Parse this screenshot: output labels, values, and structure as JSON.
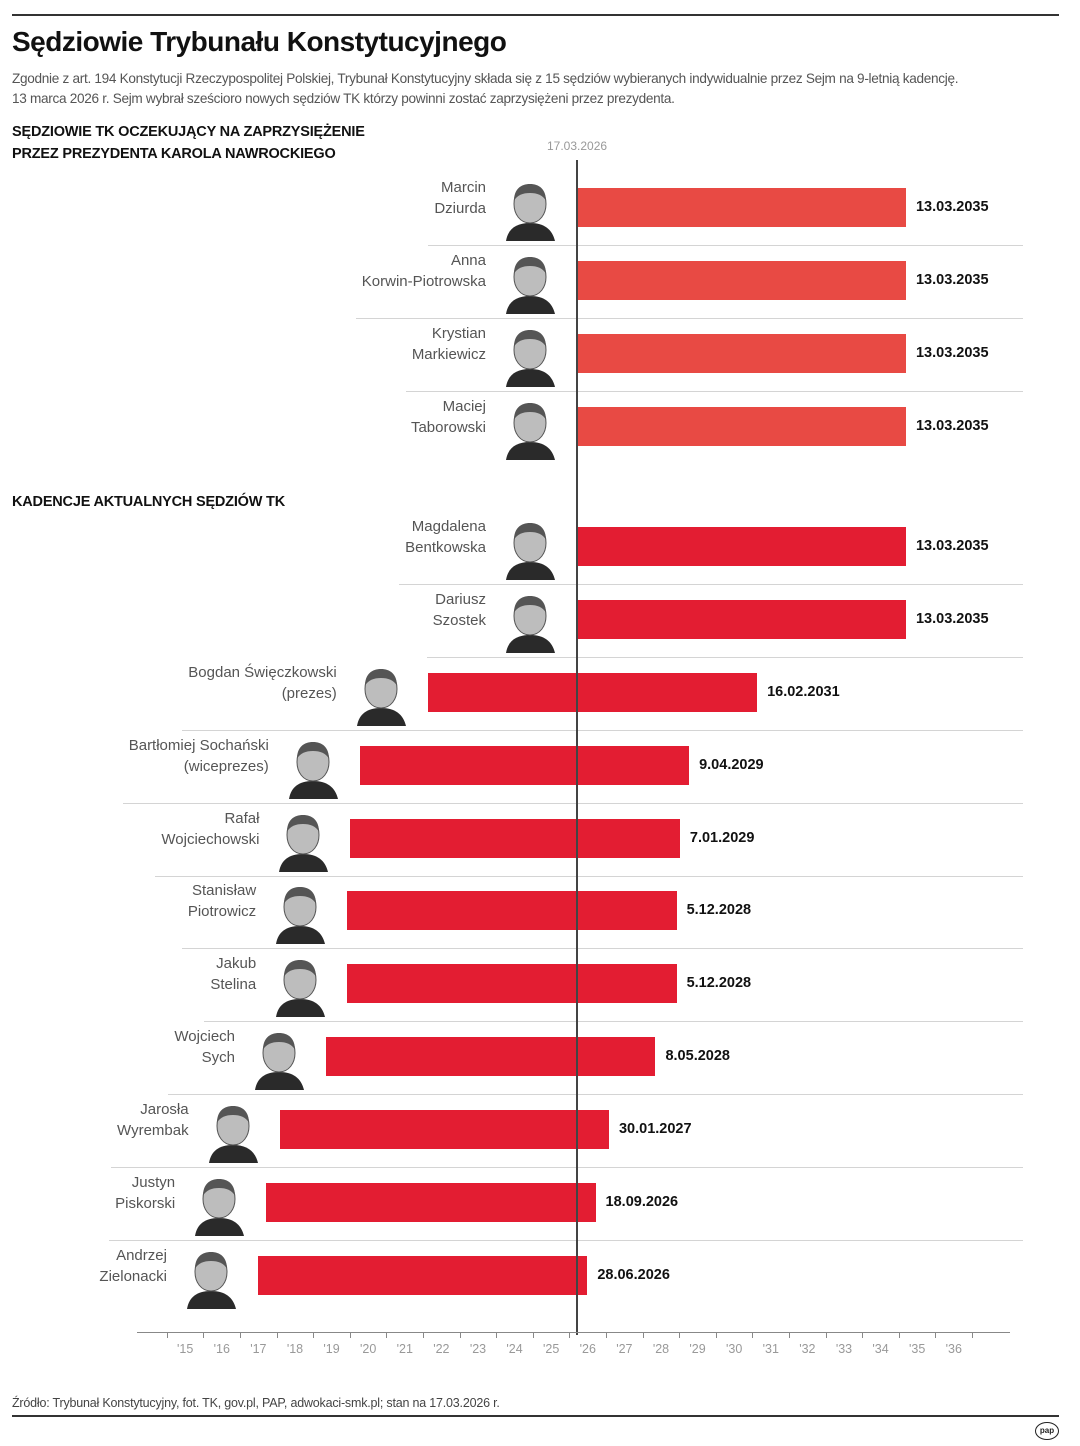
{
  "title": "Sędziowie Trybunału Konstytucyjnego",
  "subtitle_lines": [
    "Zgodnie z art. 194 Konstytucji Rzeczypospolitej Polskiej, Trybunał Konstytucyjny składa się z 15 sędziów wybieranych indywidualnie przez Sejm na 9-letnią kadencję.",
    "13 marca 2026 r. Sejm wybrał sześcioro nowych sędziów TK którzy powinni zostać zaprzysiężeni przez prezydenta."
  ],
  "source": "Źródło: Trybunał Konstytucyjny, fot. TK, gov.pl, PAP, adwokaci-smk.pl; stan na 17.03.2026 r.",
  "logo_text": "pap",
  "chart_data": {
    "type": "bar",
    "orientation": "horizontal-timeline",
    "reference_date_label": "17.03.2026",
    "reference_date": "2026-03-17",
    "x_axis": {
      "range": [
        "2014-06-01",
        "2037-01-01"
      ],
      "tick_labels": [
        "'15",
        "'16",
        "'17",
        "'18",
        "'19",
        "'20",
        "'21",
        "'22",
        "'23",
        "'24",
        "'25",
        "'26",
        "'27",
        "'28",
        "'29",
        "'30",
        "'31",
        "'32",
        "'33",
        "'34",
        "'35",
        "'36"
      ]
    },
    "grid": false,
    "colors": {
      "pending": "#e84a44",
      "current": "#e31d32"
    },
    "groups": [
      {
        "title_lines": [
          "SĘDZIOWIE TK OCZEKUJĄCY NA ZAPRZYSIĘŻENIE",
          "PRZEZ PREZYDENTA KAROLA NAWROCKIEGO"
        ],
        "kind": "pending",
        "judges": [
          {
            "name_lines": [
              "Marcin",
              "Dziurda"
            ],
            "start": "2026-03-17",
            "end": "2035-03-13",
            "end_label": "13.03.2035"
          },
          {
            "name_lines": [
              "Anna",
              "Korwin-Piotrowska"
            ],
            "start": "2026-03-17",
            "end": "2035-03-13",
            "end_label": "13.03.2035"
          },
          {
            "name_lines": [
              "Krystian",
              "Markiewicz"
            ],
            "start": "2026-03-17",
            "end": "2035-03-13",
            "end_label": "13.03.2035"
          },
          {
            "name_lines": [
              "Maciej",
              "Taborowski"
            ],
            "start": "2026-03-17",
            "end": "2035-03-13",
            "end_label": "13.03.2035"
          }
        ]
      },
      {
        "title_lines": [
          "KADENCJE AKTUALNYCH SĘDZIÓW TK"
        ],
        "kind": "current",
        "judges": [
          {
            "name_lines": [
              "Magdalena",
              "Bentkowska"
            ],
            "start": "2026-03-17",
            "end": "2035-03-13",
            "end_label": "13.03.2035"
          },
          {
            "name_lines": [
              "Dariusz",
              "Szostek"
            ],
            "start": "2026-03-17",
            "end": "2035-03-13",
            "end_label": "13.03.2035"
          },
          {
            "name_lines": [
              "Bogdan Święczkowski",
              "(prezes)"
            ],
            "start": "2022-02-16",
            "end": "2031-02-16",
            "end_label": "16.02.2031"
          },
          {
            "name_lines": [
              "Bartłomiej Sochański",
              "(wiceprezes)"
            ],
            "start": "2020-04-09",
            "end": "2029-04-09",
            "end_label": "9.04.2029"
          },
          {
            "name_lines": [
              "Rafał",
              "Wojciechowski"
            ],
            "start": "2020-01-07",
            "end": "2029-01-07",
            "end_label": "7.01.2029"
          },
          {
            "name_lines": [
              "Stanisław",
              "Piotrowicz"
            ],
            "start": "2019-12-05",
            "end": "2028-12-05",
            "end_label": "5.12.2028"
          },
          {
            "name_lines": [
              "Jakub",
              "Stelina"
            ],
            "start": "2019-12-05",
            "end": "2028-12-05",
            "end_label": "5.12.2028"
          },
          {
            "name_lines": [
              "Wojciech",
              "Sych"
            ],
            "start": "2019-05-08",
            "end": "2028-05-08",
            "end_label": "8.05.2028"
          },
          {
            "name_lines": [
              "Jarosła",
              "Wyrembak"
            ],
            "start": "2018-01-30",
            "end": "2027-01-30",
            "end_label": "30.01.2027"
          },
          {
            "name_lines": [
              "Justyn",
              "Piskorski"
            ],
            "start": "2017-09-18",
            "end": "2026-09-18",
            "end_label": "18.09.2026"
          },
          {
            "name_lines": [
              "Andrzej",
              "Zielonacki"
            ],
            "start": "2017-06-28",
            "end": "2026-06-28",
            "end_label": "28.06.2026"
          }
        ]
      }
    ]
  }
}
